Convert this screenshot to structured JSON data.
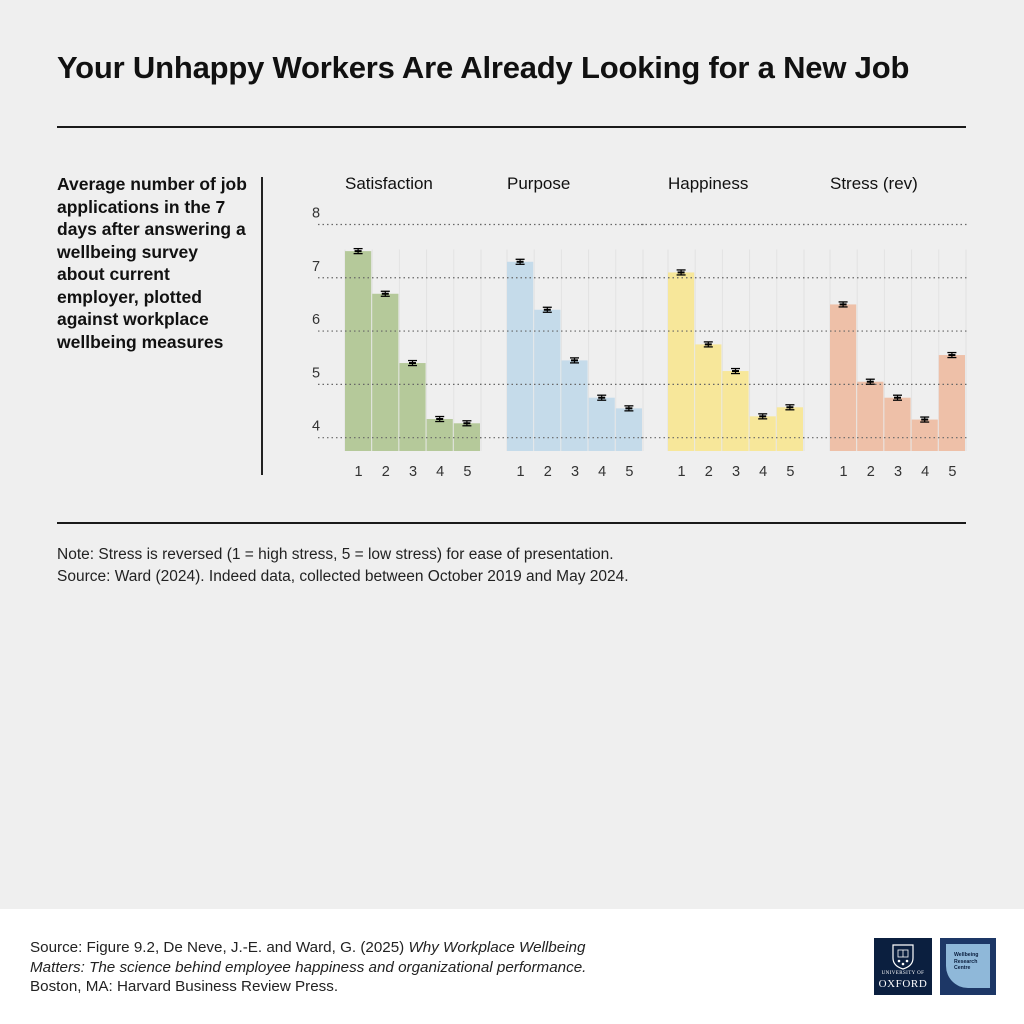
{
  "title": "Your Unhappy Workers Are Already Looking for a New Job",
  "description": "Average number of job applications in the 7 days after answering a wellbeing survey about current employer, plotted against workplace wellbeing measures",
  "chart_data": {
    "type": "bar",
    "ylim": [
      3.75,
      8
    ],
    "yticks": [
      4,
      5,
      6,
      7,
      8
    ],
    "grid": true,
    "categories": [
      "1",
      "2",
      "3",
      "4",
      "5"
    ],
    "panels": [
      {
        "name": "Satisfaction",
        "color": "#b5c99a",
        "values": [
          7.5,
          6.7,
          5.4,
          4.35,
          4.27
        ]
      },
      {
        "name": "Purpose",
        "color": "#c5dbea",
        "values": [
          7.3,
          6.4,
          5.45,
          4.75,
          4.55
        ]
      },
      {
        "name": "Happiness",
        "color": "#f7e79a",
        "values": [
          7.1,
          5.75,
          5.25,
          4.4,
          4.57
        ]
      },
      {
        "name": "Stress (rev)",
        "color": "#eec0a8",
        "values": [
          6.5,
          5.05,
          4.75,
          4.34,
          5.55
        ]
      }
    ]
  },
  "note": {
    "line1": "Note: Stress is reversed (1 = high stress, 5 = low stress) for ease of presentation.",
    "line2": "Source: Ward (2024). Indeed data, collected between October 2019 and May 2024."
  },
  "footer": {
    "source_prefix": "Source: Figure 9.2, De Neve, J.-E. and Ward, G. (2025) ",
    "source_book": "Why Workplace Wellbeing Matters: The science behind employee happiness and organizational performance.",
    "source_suffix": " Boston, MA: Harvard Business Review Press.",
    "oxford_small": "UNIVERSITY OF",
    "oxford_big": "OXFORD",
    "wrc_line1": "Wellbeing",
    "wrc_line2": "Research",
    "wrc_line3": "Centre"
  }
}
